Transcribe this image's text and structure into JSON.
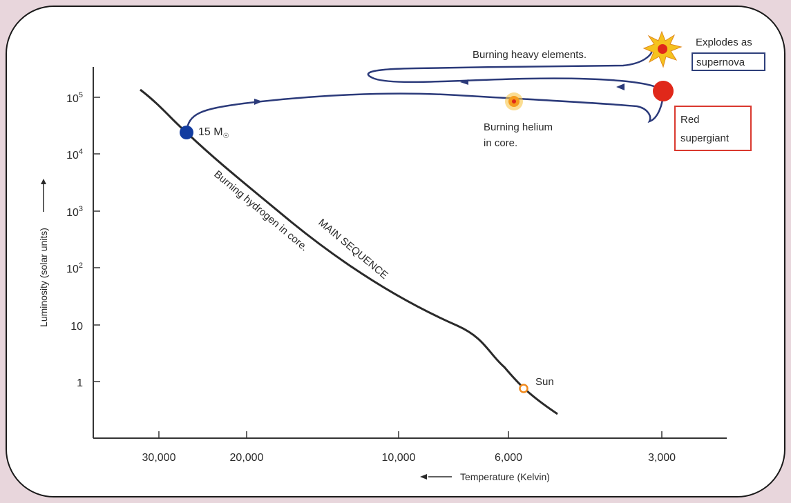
{
  "diagram": {
    "x_axis_label": "Temperature (Kelvin)",
    "y_axis_label": "Luminosity (solar units)",
    "x_ticks": [
      "30,000",
      "20,000",
      "10,000",
      "6,000",
      "3,000"
    ],
    "y_ticks": [
      {
        "base": "10",
        "exp": "5"
      },
      {
        "base": "10",
        "exp": "4"
      },
      {
        "base": "10",
        "exp": "3"
      },
      {
        "base": "10",
        "exp": "2"
      },
      {
        "base": "10",
        "exp": ""
      },
      {
        "base": "1",
        "exp": ""
      }
    ],
    "star_mass": {
      "value": "15 M",
      "subscript": "☉"
    },
    "main_sequence": "MAIN SEQUENCE",
    "burning_hydrogen": "Burning hydrogen in core.",
    "burning_helium": [
      "Burning helium",
      "in core."
    ],
    "burning_heavy": "Burning heavy elements.",
    "red_supergiant": [
      "Red",
      "supergiant"
    ],
    "explodes_as": "Explodes as",
    "supernova": "supernova",
    "sun": "Sun",
    "colors": {
      "track": "#2b3a7a",
      "main_sequence_line": "#2a2a2a",
      "star_15": "#123ca0",
      "red_supergiant_dot": "#e0281a",
      "helium_star": "#f59c1e",
      "supernova_burst": "#f5c21e",
      "red_box": "#d9382e",
      "blue_box": "#2e3f7a"
    }
  }
}
